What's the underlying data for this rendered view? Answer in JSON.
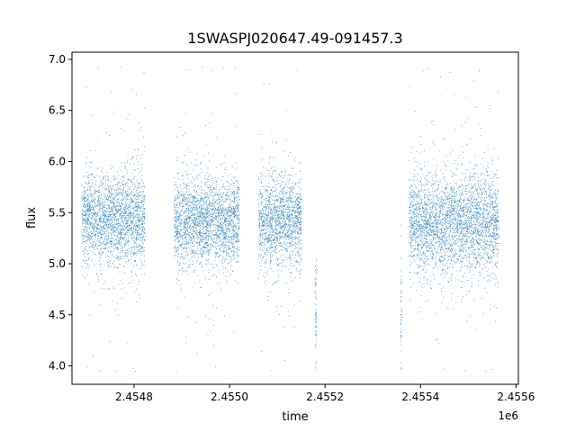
{
  "chart_data": {
    "type": "scatter",
    "title": "1SWASPJ020647.49-091457.3",
    "xlabel": "time",
    "ylabel": "flux",
    "x_offset_label": "1e6",
    "xlim": [
      2454670,
      2455605
    ],
    "ylim": [
      3.82,
      7.07
    ],
    "x_ticks": [
      2454800,
      2455000,
      2455200,
      2455400,
      2455600
    ],
    "x_tick_labels": [
      "2.4548",
      "2.4550",
      "2.4552",
      "2.4554",
      "2.4556"
    ],
    "y_ticks": [
      4.0,
      4.5,
      5.0,
      5.5,
      6.0,
      6.5,
      7.0
    ],
    "y_tick_labels": [
      "4.0",
      "4.5",
      "5.0",
      "5.5",
      "6.0",
      "6.5",
      "7.0"
    ],
    "grid": false,
    "legend": "none",
    "marker_color": "#1f77b4",
    "series": [
      {
        "segments": [
          {
            "x_range": [
              2454690,
              2454822
            ],
            "y_center": 5.45,
            "y_spread": 0.22
          },
          {
            "x_range": [
              2454883,
              2455020
            ],
            "y_center": 5.42,
            "y_spread": 0.22
          },
          {
            "x_range": [
              2455060,
              2455150
            ],
            "y_center": 5.42,
            "y_spread": 0.22
          },
          {
            "x_range": [
              2455178,
              2455182
            ],
            "y_center": 4.6,
            "y_spread": 0.25
          },
          {
            "x_range": [
              2455357,
              2455360
            ],
            "y_center": 4.5,
            "y_spread": 0.25
          },
          {
            "x_range": [
              2455375,
              2455563
            ],
            "y_center": 5.4,
            "y_spread": 0.25
          }
        ],
        "y_min_observed": 3.95,
        "y_max_observed": 6.93
      }
    ]
  }
}
